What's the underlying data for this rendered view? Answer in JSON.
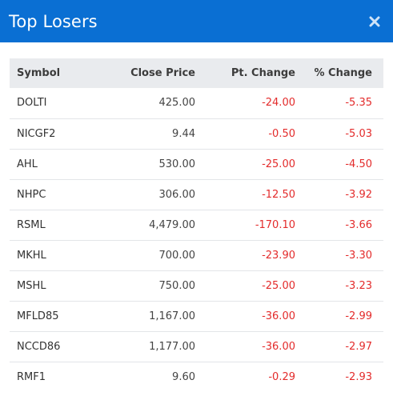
{
  "modal": {
    "title": "Top Losers",
    "close_icon": "close-icon"
  },
  "colors": {
    "header_bg": "#0a6fd3",
    "negative": "#e32b2b",
    "table_header_bg": "#e9ebee"
  },
  "table": {
    "headers": [
      "Symbol",
      "Close Price",
      "Pt. Change",
      "% Change"
    ],
    "rows": [
      {
        "symbol": "DOLTI",
        "close": "425.00",
        "pt": "-24.00",
        "pct": "-5.35"
      },
      {
        "symbol": "NICGF2",
        "close": "9.44",
        "pt": "-0.50",
        "pct": "-5.03"
      },
      {
        "symbol": "AHL",
        "close": "530.00",
        "pt": "-25.00",
        "pct": "-4.50"
      },
      {
        "symbol": "NHPC",
        "close": "306.00",
        "pt": "-12.50",
        "pct": "-3.92"
      },
      {
        "symbol": "RSML",
        "close": "4,479.00",
        "pt": "-170.10",
        "pct": "-3.66"
      },
      {
        "symbol": "MKHL",
        "close": "700.00",
        "pt": "-23.90",
        "pct": "-3.30"
      },
      {
        "symbol": "MSHL",
        "close": "750.00",
        "pt": "-25.00",
        "pct": "-3.23"
      },
      {
        "symbol": "MFLD85",
        "close": "1,167.00",
        "pt": "-36.00",
        "pct": "-2.99"
      },
      {
        "symbol": "NCCD86",
        "close": "1,177.00",
        "pt": "-36.00",
        "pct": "-2.97"
      },
      {
        "symbol": "RMF1",
        "close": "9.60",
        "pt": "-0.29",
        "pct": "-2.93"
      }
    ]
  }
}
